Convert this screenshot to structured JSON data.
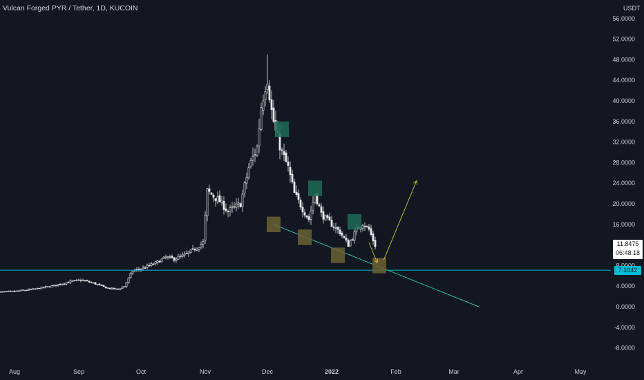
{
  "title": "Vulcan Forged PYR / Tether, 1D, KUCOIN",
  "currency": "USDT",
  "last_price": "11.8475",
  "countdown": "06:48:18",
  "hline_value": "7.1042",
  "colors": {
    "background": "#131722",
    "candle": "#e8e8e8",
    "hline": "#00bcd4",
    "trendline": "#26c6a4",
    "arrow": "#c8b432",
    "box_green": "#1f6b55",
    "box_yellow": "#6b6031"
  },
  "chart_data": {
    "type": "candlestick",
    "title": "Vulcan Forged PYR / Tether, 1D, KUCOIN",
    "y_axis": {
      "unit": "USDT",
      "range": [
        -11,
        58
      ],
      "ticks": [
        "56.0000",
        "52.0000",
        "48.0000",
        "44.0000",
        "40.0000",
        "36.0000",
        "32.0000",
        "28.0000",
        "24.0000",
        "20.0000",
        "16.0000",
        "12.0000",
        "8.0000",
        "4.0000",
        "0.0000",
        "-4.0000",
        "-8.0000"
      ],
      "tick_values": [
        56,
        52,
        48,
        44,
        40,
        36,
        32,
        28,
        24,
        20,
        16,
        12,
        8,
        4,
        0,
        -4,
        -8
      ]
    },
    "x_axis": {
      "ticks": [
        "Aug",
        "Sep",
        "Oct",
        "Nov",
        "Dec",
        "2022",
        "Feb",
        "Mar",
        "Apr",
        "May"
      ],
      "tick_dates": [
        "2021-08-01",
        "2021-09-01",
        "2021-10-01",
        "2021-11-01",
        "2021-12-01",
        "2022-01-01",
        "2022-02-01",
        "2022-03-01",
        "2022-04-01",
        "2022-05-01"
      ]
    },
    "close_path": [
      [
        "2021-07-23",
        2.8
      ],
      [
        "2021-08-01",
        3.0
      ],
      [
        "2021-08-10",
        3.4
      ],
      [
        "2021-08-20",
        4.1
      ],
      [
        "2021-08-28",
        4.9
      ],
      [
        "2021-09-02",
        5.2
      ],
      [
        "2021-09-08",
        4.6
      ],
      [
        "2021-09-15",
        3.6
      ],
      [
        "2021-09-20",
        3.4
      ],
      [
        "2021-09-23",
        4.0
      ],
      [
        "2021-09-27",
        7.0
      ],
      [
        "2021-10-02",
        7.5
      ],
      [
        "2021-10-08",
        8.5
      ],
      [
        "2021-10-13",
        9.6
      ],
      [
        "2021-10-17",
        9.3
      ],
      [
        "2021-10-22",
        10.0
      ],
      [
        "2021-10-28",
        11.5
      ],
      [
        "2021-10-31",
        12.5
      ],
      [
        "2021-11-02",
        22.5
      ],
      [
        "2021-11-08",
        20.5
      ],
      [
        "2021-11-12",
        18.5
      ],
      [
        "2021-11-18",
        20.0
      ],
      [
        "2021-11-22",
        27.0
      ],
      [
        "2021-11-26",
        31.0
      ],
      [
        "2021-11-28",
        39.0
      ],
      [
        "2021-11-30",
        43.0
      ],
      [
        "2021-12-01",
        44.5
      ],
      [
        "2021-12-03",
        38.0
      ],
      [
        "2021-12-05",
        34.0
      ],
      [
        "2021-12-08",
        30.0
      ],
      [
        "2021-12-11",
        27.0
      ],
      [
        "2021-12-14",
        22.0
      ],
      [
        "2021-12-18",
        19.0
      ],
      [
        "2021-12-21",
        17.0
      ],
      [
        "2021-12-24",
        22.0
      ],
      [
        "2021-12-27",
        18.0
      ],
      [
        "2022-01-01",
        16.0
      ],
      [
        "2022-01-05",
        14.5
      ],
      [
        "2022-01-09",
        12.0
      ],
      [
        "2022-01-13",
        15.0
      ],
      [
        "2022-01-16",
        16.2
      ],
      [
        "2022-01-19",
        15.0
      ],
      [
        "2022-01-22",
        11.85
      ]
    ],
    "extremes": {
      "high": 49.0,
      "high_date": "2021-12-01"
    },
    "horizontal_line": 7.1042,
    "trend_line": [
      [
        "2021-12-04",
        16.0
      ],
      [
        "2022-03-13",
        0.0
      ]
    ],
    "projection_arrows": [
      [
        [
          "2022-01-19",
          12.5
        ],
        [
          "2022-01-23",
          8.5
        ]
      ],
      [
        [
          "2022-01-26",
          9.0
        ],
        [
          "2022-02-11",
          24.5
        ]
      ]
    ],
    "highlight_boxes": [
      {
        "color": "green",
        "date": "2021-12-08",
        "low": 33.0,
        "high": 36.0
      },
      {
        "color": "green",
        "date": "2021-12-24",
        "low": 21.5,
        "high": 24.5
      },
      {
        "color": "green",
        "date": "2022-01-12",
        "low": 15.0,
        "high": 18.0
      },
      {
        "color": "yellow",
        "date": "2021-12-04",
        "low": 14.5,
        "high": 17.5
      },
      {
        "color": "yellow",
        "date": "2021-12-19",
        "low": 12.0,
        "high": 15.0
      },
      {
        "color": "yellow",
        "date": "2022-01-04",
        "low": 8.5,
        "high": 11.5
      },
      {
        "color": "yellow",
        "date": "2022-01-24",
        "low": 6.5,
        "high": 9.5
      }
    ]
  }
}
